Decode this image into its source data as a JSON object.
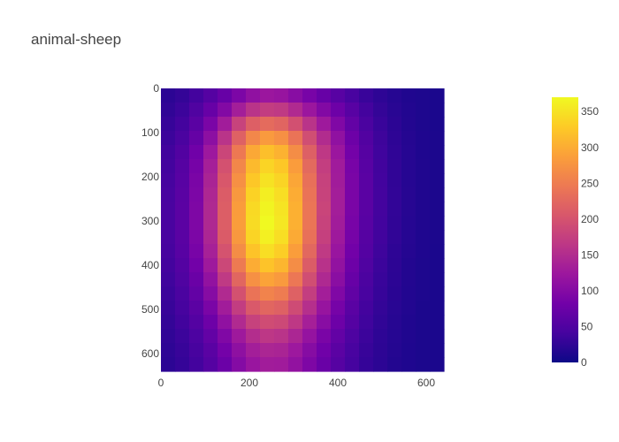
{
  "chart_data": {
    "type": "heatmap",
    "title": "animal-sheep",
    "xlabel": "",
    "ylabel": "",
    "x_range": [
      0,
      640
    ],
    "y_range": [
      640,
      0
    ],
    "x_ticks": [
      0,
      200,
      400,
      600
    ],
    "y_ticks": [
      0,
      100,
      200,
      300,
      400,
      500,
      600
    ],
    "colorscale": "plasma",
    "colorbar": {
      "min": 0,
      "max": 370,
      "ticks": [
        0,
        50,
        100,
        150,
        200,
        250,
        300,
        350
      ]
    },
    "grid_columns_x": [
      16,
      48,
      80,
      112,
      144,
      176,
      208,
      240,
      272,
      304,
      336,
      368,
      400,
      432,
      464,
      496,
      528,
      560,
      592,
      624
    ],
    "grid_rows_y": [
      16,
      48,
      80,
      112,
      144,
      176,
      208,
      240,
      272,
      304,
      336,
      368,
      400,
      432,
      464,
      496,
      528,
      560,
      592,
      624
    ],
    "z": [
      [
        22,
        28,
        40,
        55,
        72,
        92,
        112,
        122,
        118,
        104,
        88,
        72,
        58,
        44,
        32,
        24,
        18,
        14,
        12,
        10
      ],
      [
        26,
        34,
        50,
        72,
        98,
        132,
        160,
        172,
        168,
        148,
        122,
        98,
        78,
        58,
        40,
        28,
        20,
        15,
        12,
        10
      ],
      [
        30,
        40,
        60,
        90,
        130,
        180,
        215,
        230,
        222,
        196,
        160,
        126,
        96,
        68,
        46,
        32,
        22,
        16,
        12,
        10
      ],
      [
        34,
        46,
        70,
        108,
        160,
        218,
        262,
        282,
        272,
        240,
        194,
        150,
        112,
        78,
        52,
        35,
        24,
        17,
        13,
        11
      ],
      [
        38,
        52,
        80,
        124,
        184,
        246,
        296,
        318,
        306,
        268,
        216,
        166,
        122,
        84,
        56,
        37,
        25,
        18,
        13,
        11
      ],
      [
        40,
        56,
        86,
        134,
        198,
        262,
        314,
        338,
        326,
        284,
        228,
        174,
        128,
        88,
        58,
        38,
        26,
        18,
        14,
        11
      ],
      [
        42,
        58,
        90,
        140,
        206,
        272,
        326,
        350,
        338,
        294,
        236,
        178,
        130,
        90,
        60,
        39,
        26,
        18,
        14,
        11
      ],
      [
        44,
        60,
        92,
        144,
        212,
        280,
        336,
        360,
        346,
        300,
        240,
        180,
        132,
        90,
        60,
        40,
        27,
        19,
        14,
        11
      ],
      [
        45,
        61,
        94,
        146,
        214,
        284,
        342,
        366,
        352,
        304,
        242,
        182,
        132,
        90,
        60,
        40,
        27,
        19,
        14,
        11
      ],
      [
        45,
        61,
        94,
        146,
        214,
        286,
        344,
        370,
        354,
        304,
        242,
        180,
        130,
        88,
        58,
        39,
        26,
        18,
        14,
        11
      ],
      [
        44,
        60,
        92,
        142,
        210,
        280,
        338,
        362,
        346,
        298,
        236,
        176,
        126,
        86,
        56,
        38,
        26,
        18,
        13,
        11
      ],
      [
        42,
        58,
        88,
        136,
        200,
        268,
        322,
        346,
        332,
        286,
        226,
        168,
        120,
        82,
        54,
        36,
        24,
        17,
        13,
        10
      ],
      [
        40,
        54,
        82,
        126,
        186,
        248,
        300,
        322,
        310,
        268,
        212,
        158,
        114,
        78,
        50,
        34,
        23,
        16,
        12,
        10
      ],
      [
        37,
        50,
        75,
        114,
        168,
        224,
        272,
        292,
        282,
        244,
        194,
        146,
        106,
        72,
        47,
        32,
        22,
        16,
        12,
        10
      ],
      [
        34,
        46,
        68,
        102,
        148,
        198,
        240,
        258,
        250,
        218,
        174,
        132,
        96,
        66,
        44,
        30,
        21,
        15,
        12,
        10
      ],
      [
        31,
        42,
        61,
        90,
        130,
        172,
        208,
        224,
        218,
        190,
        154,
        118,
        86,
        60,
        40,
        28,
        20,
        15,
        11,
        10
      ],
      [
        28,
        38,
        54,
        78,
        112,
        148,
        178,
        192,
        188,
        166,
        134,
        104,
        78,
        55,
        37,
        26,
        19,
        14,
        11,
        10
      ],
      [
        26,
        34,
        48,
        68,
        96,
        126,
        152,
        164,
        160,
        142,
        116,
        90,
        68,
        49,
        34,
        24,
        18,
        14,
        11,
        10
      ],
      [
        24,
        31,
        43,
        60,
        84,
        110,
        132,
        142,
        140,
        124,
        102,
        80,
        61,
        44,
        31,
        23,
        17,
        13,
        11,
        10
      ],
      [
        22,
        29,
        40,
        55,
        76,
        100,
        120,
        130,
        128,
        114,
        94,
        74,
        56,
        41,
        29,
        22,
        16,
        13,
        11,
        10
      ]
    ]
  }
}
